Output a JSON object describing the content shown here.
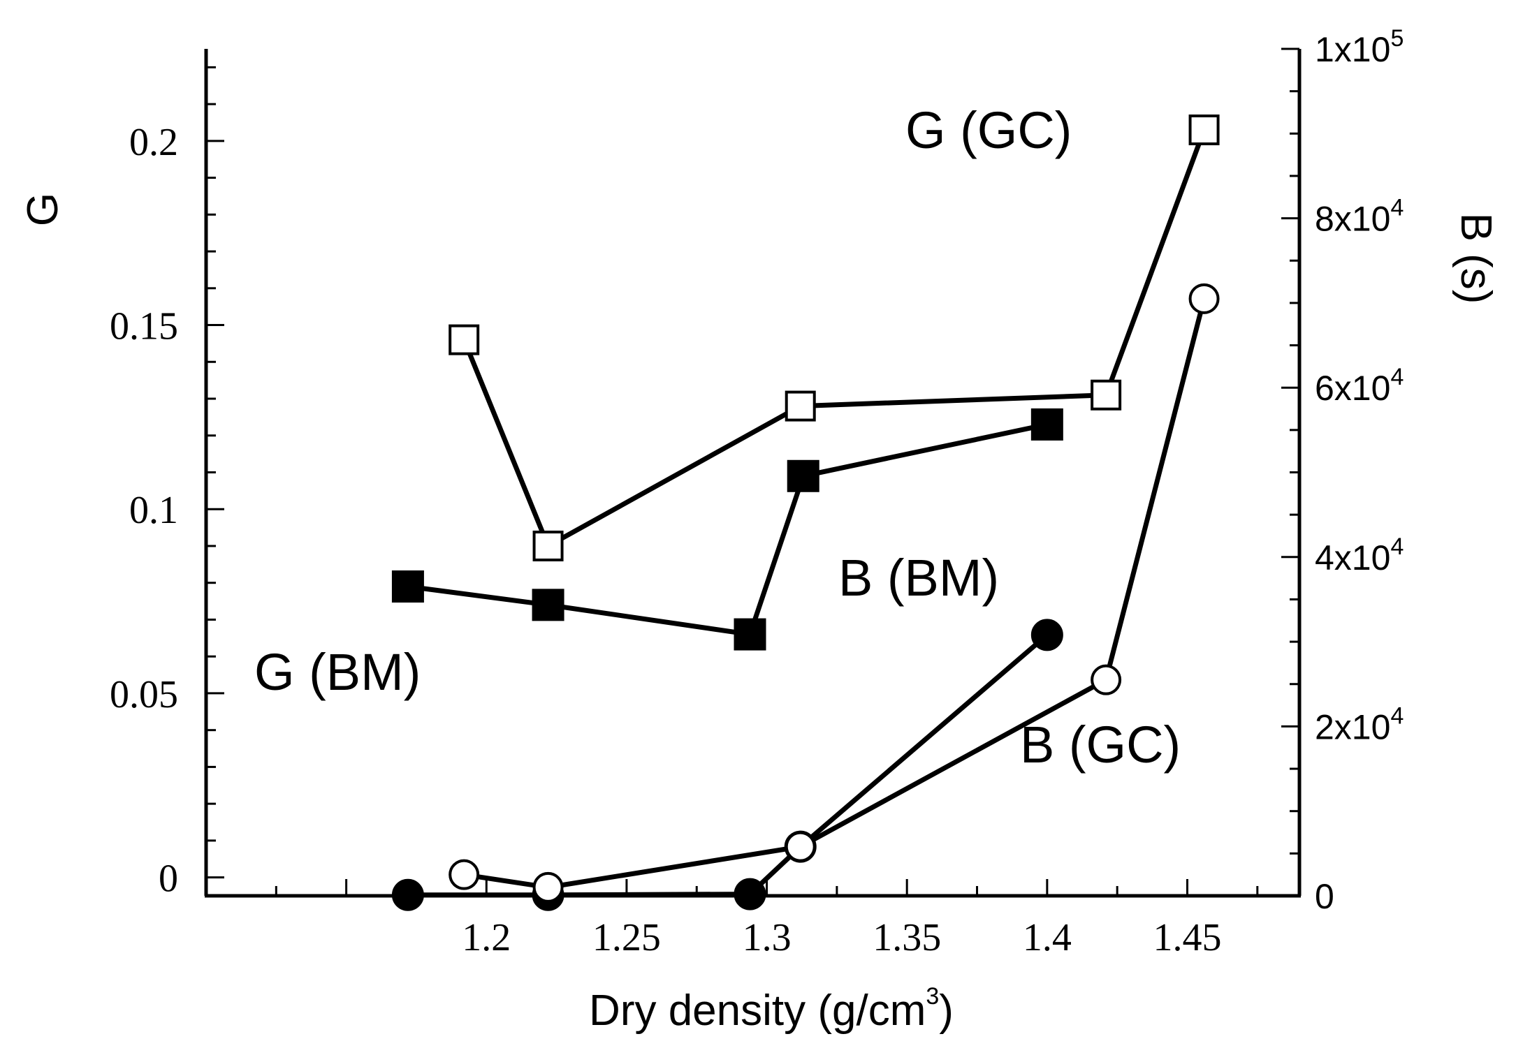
{
  "chart_data": {
    "type": "line",
    "xlabel": "Dry density (g/cm",
    "xlabel_sup": "3",
    "xlabel_end": ")",
    "ylabel_left": "G",
    "ylabel_right": "B (s)",
    "xlim": [
      1.1,
      1.49
    ],
    "ylim_left": [
      -0.005,
      0.225
    ],
    "ylim_right": [
      0,
      100000
    ],
    "x_ticks": [
      1.2,
      1.25,
      1.3,
      1.35,
      1.4,
      1.45
    ],
    "x_tick_labels": [
      "1.2",
      "1.25",
      "1.3",
      "1.35",
      "1.4",
      "1.45"
    ],
    "y_left_ticks": [
      0,
      0.05,
      0.1,
      0.15,
      0.2
    ],
    "y_left_tick_labels": [
      "0",
      "0.05",
      "0.1",
      "0.15",
      "0.2"
    ],
    "y_right_ticks": [
      0,
      20000,
      40000,
      60000,
      80000,
      100000
    ],
    "y_right_tick_labels": [
      {
        "base": "0",
        "exp": ""
      },
      {
        "base": "2x10",
        "exp": "4"
      },
      {
        "base": "4x10",
        "exp": "4"
      },
      {
        "base": "6x10",
        "exp": "4"
      },
      {
        "base": "8x10",
        "exp": "4"
      },
      {
        "base": "1x10",
        "exp": "5"
      }
    ],
    "series": [
      {
        "name": "G (GC)",
        "label": "G (GC)",
        "axis": "left",
        "marker": "open-square",
        "x": [
          1.192,
          1.222,
          1.312,
          1.421,
          1.456
        ],
        "y": [
          0.146,
          0.09,
          0.128,
          0.131,
          0.203
        ]
      },
      {
        "name": "G (BM)",
        "label": "G (BM)",
        "axis": "left",
        "marker": "filled-square",
        "x": [
          1.172,
          1.222,
          1.294,
          1.313,
          1.4
        ],
        "y": [
          0.079,
          0.074,
          0.066,
          0.109,
          0.123
        ]
      },
      {
        "name": "B (BM)",
        "label": "B (BM)",
        "axis": "right",
        "marker": "filled-circle",
        "x": [
          1.172,
          1.222,
          1.294,
          1.312,
          1.4
        ],
        "y": [
          100,
          100,
          200,
          5800,
          30800
        ]
      },
      {
        "name": "B (GC)",
        "label": "B (GC)",
        "axis": "right",
        "marker": "open-circle",
        "x": [
          1.192,
          1.222,
          1.312,
          1.421,
          1.456
        ],
        "y": [
          2500,
          1000,
          5800,
          25500,
          70500
        ]
      }
    ]
  }
}
